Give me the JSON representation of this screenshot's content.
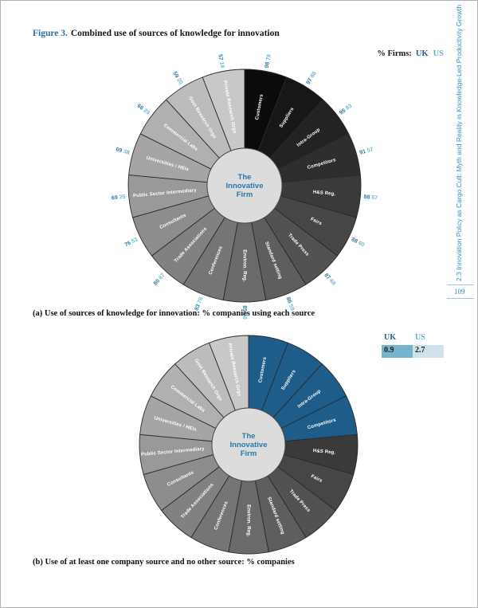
{
  "page": {
    "title_prefix": "Figure 3.",
    "title_rest": "Combined use of sources of knowledge for innovation",
    "sidebar_text": "2.3 Innovation Policy as Cargo Cult: Myth and Reality in Knowledge-Led Productivity Growth",
    "page_number": "109"
  },
  "legend_top": {
    "label": "% Firms:",
    "uk": "UK",
    "us": "US"
  },
  "legend_bottom": {
    "uk_header": "UK",
    "us_header": "US",
    "uk_value": "0.9",
    "us_value": "2.7"
  },
  "colors": {
    "title_blue": "#2a6fa8",
    "uk_blue": "#1d5f8c",
    "us_blue": "#62b1d3",
    "uk_number": "#2e7ca8",
    "us_number": "#6cb8d8",
    "highlight_blue": "#1e5d8a",
    "ramp_dark": "#0b0b0b",
    "ramp_light": "#c8c8c8",
    "stroke": "#2a2a2a",
    "center_fill": "#dcdcdc",
    "center_text": "#2878b0",
    "sidebar_teal": "#2e93b3",
    "legend_cell_uk_bg": "#74b4cd",
    "legend_cell_us_bg": "#cfe2ec"
  },
  "chart_data": [
    {
      "type": "pie",
      "variant": "knowledge-wheel",
      "title": "(a) Use of sources of knowledge for innovation: % companies using each source",
      "center_label": "The Innovative Firm",
      "legend": "% Firms: UK US",
      "legend_position": "top-right",
      "show_values": true,
      "categories": [
        "Customers",
        "Suppliers",
        "Intra-Group",
        "Competitors",
        "H&S Reg.",
        "Fairs",
        "Trade Press",
        "Standard setting",
        "Environ. Reg.",
        "Conferences",
        "Trade Associations",
        "Consultants",
        "Public Sector Intermediary",
        "Universities / HEIs",
        "Commercial Labs",
        "Govt Research Orgs",
        "Private Research Orgs"
      ],
      "series": [
        {
          "name": "UK",
          "values": [
            98,
            97,
            95,
            91,
            88,
            88,
            87,
            86,
            85,
            83,
            80,
            76,
            69,
            69,
            66,
            59,
            57
          ]
        },
        {
          "name": "US",
          "values": [
            78,
            88,
            83,
            57,
            57,
            60,
            68,
            59,
            50,
            76,
            67,
            53,
            25,
            38,
            29,
            20,
            18
          ]
        }
      ]
    },
    {
      "type": "pie",
      "variant": "knowledge-wheel",
      "title": "(b) Use of at least one company source and no other source: % companies",
      "center_label": "The Innovative Firm",
      "legend_position": "top-right",
      "show_values": false,
      "categories": [
        "Customers",
        "Suppliers",
        "Intra-Group",
        "Competitors",
        "H&S Reg.",
        "Fairs",
        "Trade Press",
        "Standard setting",
        "Environ. Reg.",
        "Conferences",
        "Trade Associations",
        "Consultants",
        "Public Sector Intermediary",
        "Universities / HEIs",
        "Commercial Labs",
        "Govt Research Orgs",
        "Private Research Orgs"
      ],
      "highlight_categories": [
        "Customers",
        "Suppliers",
        "Intra-Group",
        "Competitors"
      ],
      "summary_values": {
        "UK": "0.9",
        "US": "2.7"
      }
    }
  ]
}
